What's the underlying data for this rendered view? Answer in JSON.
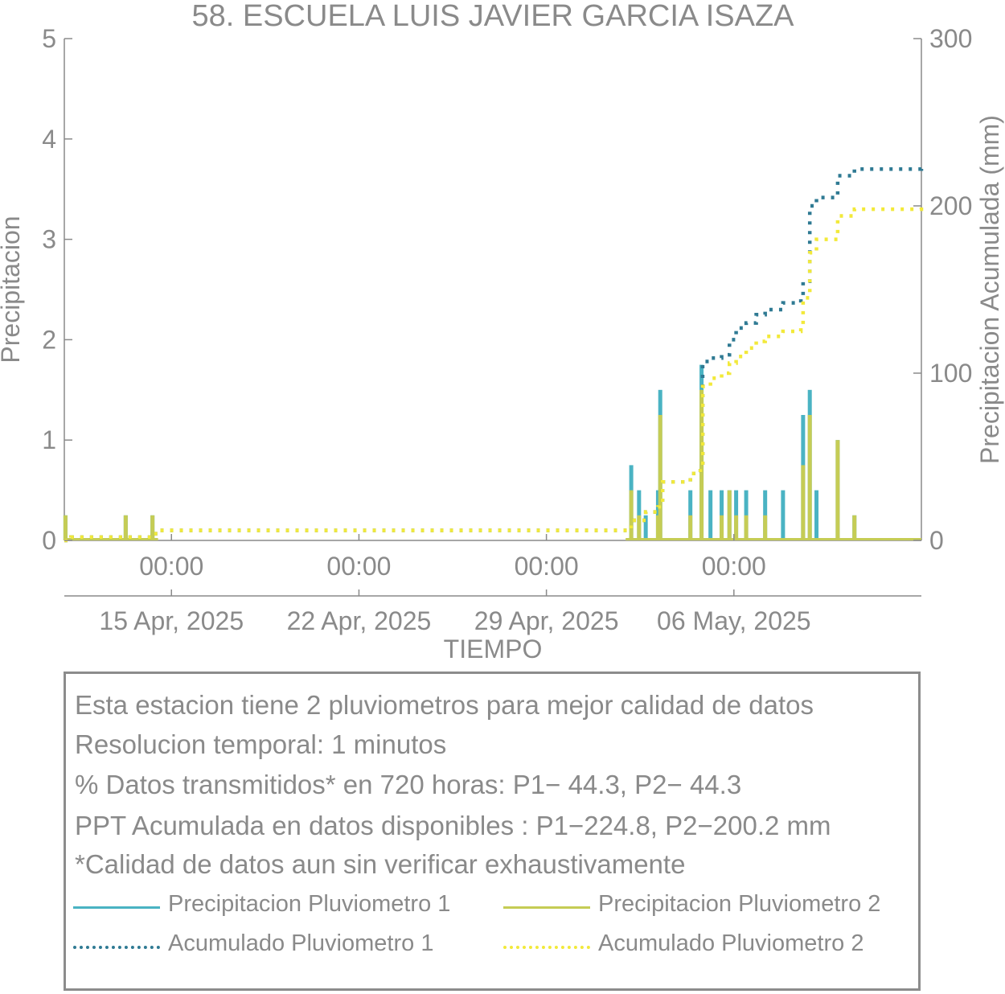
{
  "chart_data": {
    "type": "bar",
    "title": "58. ESCUELA LUIS JAVIER GARCIA ISAZA",
    "xlabel": "TIEMPO",
    "ylabel_left": "Precipitacion",
    "ylabel_right": "Precipitacion Acumulada (mm)",
    "x_range_days": [
      "2025-04-11",
      "2025-05-13"
    ],
    "ylim_left": [
      0,
      5
    ],
    "ylim_right": [
      0,
      300
    ],
    "yticks_left": [
      "0",
      "1",
      "2",
      "3",
      "4",
      "5"
    ],
    "yticks_right": [
      "0",
      "100",
      "200",
      "300"
    ],
    "xticks": [
      {
        "date": "2025-04-15",
        "time_label": "00:00",
        "date_label": "15 Apr, 2025"
      },
      {
        "date": "2025-04-22",
        "time_label": "00:00",
        "date_label": "22 Apr, 2025"
      },
      {
        "date": "2025-04-29",
        "time_label": "00:00",
        "date_label": "29 Apr, 2025"
      },
      {
        "date": "2025-05-06",
        "time_label": "00:00",
        "date_label": "06 May, 2025"
      }
    ],
    "series": [
      {
        "name": "Precipitacion Pluviometro 1",
        "kind": "bar",
        "axis": "left",
        "color": "#4ab3c3",
        "points": [
          [
            "2025-04-11 01:00",
            0.25
          ],
          [
            "2025-04-13 07:00",
            0.25
          ],
          [
            "2025-04-14 07:00",
            0.25
          ],
          [
            "2025-05-02 04:00",
            0.75
          ],
          [
            "2025-05-02 11:00",
            0.5
          ],
          [
            "2025-05-02 17:00",
            0.25
          ],
          [
            "2025-05-03 04:00",
            0.5
          ],
          [
            "2025-05-03 06:00",
            1.5
          ],
          [
            "2025-05-04 09:00",
            0.5
          ],
          [
            "2025-05-04 19:00",
            1.75
          ],
          [
            "2025-05-05 03:00",
            0.5
          ],
          [
            "2025-05-05 13:00",
            0.5
          ],
          [
            "2025-05-05 20:00",
            0.5
          ],
          [
            "2025-05-06 02:00",
            0.5
          ],
          [
            "2025-05-06 11:00",
            0.5
          ],
          [
            "2025-05-07 04:00",
            0.5
          ],
          [
            "2025-05-07 20:00",
            0.5
          ],
          [
            "2025-05-08 14:00",
            1.25
          ],
          [
            "2025-05-08 20:00",
            1.5
          ],
          [
            "2025-05-09 02:00",
            0.5
          ],
          [
            "2025-05-09 21:00",
            1.0
          ],
          [
            "2025-05-10 12:00",
            0.25
          ]
        ]
      },
      {
        "name": "Precipitacion Pluviometro 2",
        "kind": "bar",
        "axis": "left",
        "color": "#c5cc55",
        "points": [
          [
            "2025-04-11 01:00",
            0.25
          ],
          [
            "2025-04-13 07:00",
            0.25
          ],
          [
            "2025-04-14 07:00",
            0.25
          ],
          [
            "2025-05-02 04:00",
            0.5
          ],
          [
            "2025-05-02 11:00",
            0.25
          ],
          [
            "2025-05-03 04:00",
            0.25
          ],
          [
            "2025-05-03 06:00",
            1.25
          ],
          [
            "2025-05-04 09:00",
            0.25
          ],
          [
            "2025-05-04 19:00",
            1.5
          ],
          [
            "2025-05-05 13:00",
            0.25
          ],
          [
            "2025-05-05 20:00",
            0.5
          ],
          [
            "2025-05-06 02:00",
            0.25
          ],
          [
            "2025-05-06 11:00",
            0.25
          ],
          [
            "2025-05-07 04:00",
            0.25
          ],
          [
            "2025-05-08 14:00",
            0.75
          ],
          [
            "2025-05-08 20:00",
            1.25
          ],
          [
            "2025-05-09 21:00",
            1.0
          ],
          [
            "2025-05-10 12:00",
            0.25
          ]
        ]
      },
      {
        "name": "Acumulado Pluviometro 1",
        "kind": "line",
        "axis": "right",
        "color": "#2f7a93",
        "style": "dotted",
        "points": [
          [
            "2025-04-11 00:00",
            0
          ],
          [
            "2025-04-11 06:00",
            2
          ],
          [
            "2025-04-13 07:00",
            2
          ],
          [
            "2025-04-14 07:00",
            4
          ],
          [
            "2025-04-14 12:00",
            6
          ],
          [
            "2025-05-01 23:00",
            6
          ],
          [
            "2025-05-02 04:00",
            12
          ],
          [
            "2025-05-02 17:00",
            17
          ],
          [
            "2025-05-03 04:00",
            20
          ],
          [
            "2025-05-03 08:00",
            35
          ],
          [
            "2025-05-04 09:00",
            40
          ],
          [
            "2025-05-04 18:00",
            45
          ],
          [
            "2025-05-04 20:00",
            107
          ],
          [
            "2025-05-05 03:00",
            109
          ],
          [
            "2025-05-05 13:00",
            111
          ],
          [
            "2025-05-05 20:00",
            120
          ],
          [
            "2025-05-06 02:00",
            127
          ],
          [
            "2025-05-06 11:00",
            130
          ],
          [
            "2025-05-06 20:00",
            135
          ],
          [
            "2025-05-07 04:00",
            138
          ],
          [
            "2025-05-07 20:00",
            142
          ],
          [
            "2025-05-08 12:00",
            145
          ],
          [
            "2025-05-08 14:00",
            155
          ],
          [
            "2025-05-08 20:00",
            200
          ],
          [
            "2025-05-09 02:00",
            205
          ],
          [
            "2025-05-09 21:00",
            218
          ],
          [
            "2025-05-10 12:00",
            222
          ],
          [
            "2025-05-13 00:00",
            224.8
          ]
        ]
      },
      {
        "name": "Acumulado Pluviometro 2",
        "kind": "line",
        "axis": "right",
        "color": "#f2e93a",
        "style": "dotted",
        "points": [
          [
            "2025-04-11 00:00",
            0
          ],
          [
            "2025-04-11 06:00",
            2
          ],
          [
            "2025-04-13 07:00",
            2
          ],
          [
            "2025-04-14 07:00",
            4
          ],
          [
            "2025-04-14 12:00",
            6
          ],
          [
            "2025-05-01 23:00",
            6
          ],
          [
            "2025-05-02 04:00",
            12
          ],
          [
            "2025-05-02 17:00",
            17
          ],
          [
            "2025-05-03 04:00",
            20
          ],
          [
            "2025-05-03 08:00",
            35
          ],
          [
            "2025-05-04 09:00",
            40
          ],
          [
            "2025-05-04 18:00",
            44
          ],
          [
            "2025-05-04 20:00",
            92
          ],
          [
            "2025-05-05 03:00",
            97
          ],
          [
            "2025-05-05 13:00",
            100
          ],
          [
            "2025-05-05 20:00",
            106
          ],
          [
            "2025-05-06 02:00",
            110
          ],
          [
            "2025-05-06 11:00",
            115
          ],
          [
            "2025-05-06 20:00",
            119
          ],
          [
            "2025-05-07 04:00",
            122
          ],
          [
            "2025-05-07 20:00",
            125
          ],
          [
            "2025-05-08 12:00",
            128
          ],
          [
            "2025-05-08 14:00",
            145
          ],
          [
            "2025-05-08 20:00",
            172
          ],
          [
            "2025-05-09 02:00",
            180
          ],
          [
            "2025-05-09 21:00",
            194
          ],
          [
            "2025-05-10 12:00",
            198
          ],
          [
            "2025-05-13 00:00",
            200.2
          ]
        ]
      }
    ]
  },
  "info": {
    "lines": [
      "Esta estacion tiene 2 pluviometros para mejor calidad de datos",
      "Resolucion temporal: 1 minutos",
      "% Datos transmitidos* en 720 horas: P1− 44.3, P2− 44.3",
      "PPT Acumulada en datos disponibles : P1−224.8, P2−200.2 mm",
      "*Calidad de datos aun sin verificar exhaustivamente"
    ],
    "legend": [
      {
        "label": "Precipitacion Pluviometro 1",
        "color": "#4ab3c3",
        "style": "solid"
      },
      {
        "label": "Precipitacion Pluviometro 2",
        "color": "#c5cc55",
        "style": "solid"
      },
      {
        "label": "Acumulado Pluviometro 1",
        "color": "#2f7a93",
        "style": "dotted"
      },
      {
        "label": "Acumulado Pluviometro 2",
        "color": "#f2e93a",
        "style": "dotted"
      }
    ]
  }
}
